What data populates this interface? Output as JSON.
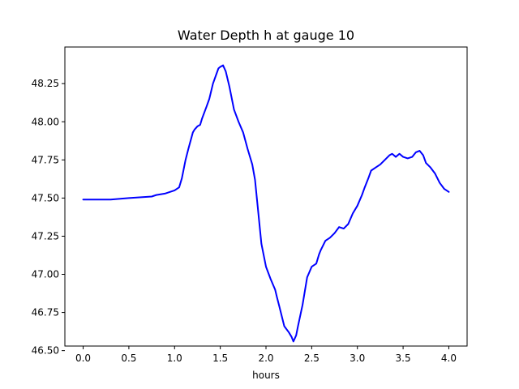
{
  "chart_data": {
    "type": "line",
    "title": "Water Depth h at gauge 10",
    "xlabel": "hours",
    "ylabel": "",
    "xlim": [
      -0.2,
      4.2
    ],
    "ylim": [
      46.53,
      48.49
    ],
    "xticks": [
      0.0,
      0.5,
      1.0,
      1.5,
      2.0,
      2.5,
      3.0,
      3.5,
      4.0
    ],
    "xtick_labels": [
      "0.0",
      "0.5",
      "1.0",
      "1.5",
      "2.0",
      "2.5",
      "3.0",
      "3.5",
      "4.0"
    ],
    "yticks": [
      46.5,
      46.75,
      47.0,
      47.25,
      47.5,
      47.75,
      48.0,
      48.25
    ],
    "ytick_labels": [
      "46.50",
      "46.75",
      "47.00",
      "47.25",
      "47.50",
      "47.75",
      "48.00",
      "48.25"
    ],
    "grid": false,
    "series": [
      {
        "color": "#0000ff",
        "x": [
          0.0,
          0.3,
          0.5,
          0.75,
          0.8,
          0.9,
          1.0,
          1.05,
          1.08,
          1.12,
          1.15,
          1.2,
          1.22,
          1.25,
          1.28,
          1.3,
          1.35,
          1.38,
          1.42,
          1.45,
          1.48,
          1.5,
          1.53,
          1.56,
          1.6,
          1.65,
          1.7,
          1.75,
          1.8,
          1.85,
          1.88,
          1.92,
          1.95,
          2.0,
          2.05,
          2.1,
          2.12,
          2.15,
          2.2,
          2.25,
          2.28,
          2.3,
          2.33,
          2.35,
          2.4,
          2.45,
          2.5,
          2.55,
          2.58,
          2.6,
          2.65,
          2.7,
          2.75,
          2.8,
          2.85,
          2.9,
          2.95,
          3.0,
          3.05,
          3.08,
          3.12,
          3.15,
          3.2,
          3.25,
          3.3,
          3.35,
          3.38,
          3.42,
          3.46,
          3.5,
          3.55,
          3.6,
          3.64,
          3.68,
          3.72,
          3.75,
          3.8,
          3.85,
          3.9,
          3.95,
          4.0
        ],
        "y": [
          47.49,
          47.49,
          47.5,
          47.51,
          47.52,
          47.53,
          47.55,
          47.57,
          47.63,
          47.75,
          47.82,
          47.93,
          47.95,
          47.97,
          47.98,
          48.02,
          48.1,
          48.15,
          48.25,
          48.3,
          48.35,
          48.36,
          48.37,
          48.33,
          48.23,
          48.08,
          48.0,
          47.93,
          47.82,
          47.72,
          47.62,
          47.38,
          47.2,
          47.05,
          46.97,
          46.9,
          46.85,
          46.78,
          46.66,
          46.62,
          46.59,
          46.56,
          46.6,
          46.66,
          46.8,
          46.98,
          47.05,
          47.07,
          47.13,
          47.16,
          47.22,
          47.24,
          47.27,
          47.31,
          47.3,
          47.33,
          47.4,
          47.45,
          47.52,
          47.57,
          47.63,
          47.68,
          47.7,
          47.72,
          47.75,
          47.78,
          47.79,
          47.77,
          47.79,
          47.77,
          47.76,
          47.77,
          47.8,
          47.81,
          47.78,
          47.73,
          47.7,
          47.66,
          47.6,
          47.56,
          47.54
        ]
      }
    ]
  }
}
